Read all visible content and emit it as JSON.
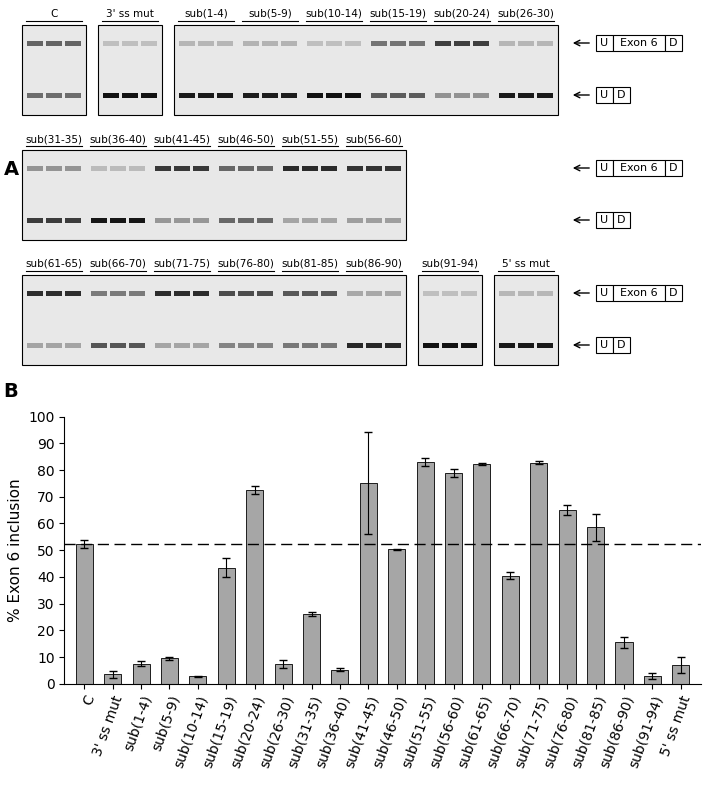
{
  "gel_panel": {
    "label": "A",
    "rows": [
      [
        [
          "C"
        ],
        [
          "3' ss mut"
        ],
        [
          "sub(1-4)",
          "sub(5-9)",
          "sub(10-14)",
          "sub(15-19)",
          "sub(20-24)",
          "sub(26-30)"
        ]
      ],
      [
        [
          "sub(31-35)",
          "sub(36-40)",
          "sub(41-45)",
          "sub(46-50)",
          "sub(51-55)",
          "sub(56-60)"
        ]
      ],
      [
        [
          "sub(61-65)",
          "sub(66-70)",
          "sub(71-75)",
          "sub(76-80)",
          "sub(81-85)",
          "sub(86-90)"
        ],
        [
          "sub(91-94)"
        ],
        [
          "5' ss mut"
        ]
      ]
    ],
    "band_labels": [
      [
        "U",
        "Exon 6",
        "D"
      ],
      [
        "U",
        "D"
      ]
    ]
  },
  "chart_data": {
    "type": "bar",
    "panel_label": "B",
    "ylabel": "% Exon 6 inclusion",
    "categories": [
      "C",
      "3' ss mut",
      "sub(1-4)",
      "sub(5-9)",
      "sub(10-14)",
      "sub(15-19)",
      "sub(20-24)",
      "sub(26-30)",
      "sub(31-35)",
      "sub(36-40)",
      "sub(41-45)",
      "sub(46-50)",
      "sub(51-55)",
      "sub(56-60)",
      "sub(61-65)",
      "sub(66-70)",
      "sub(71-75)",
      "sub(76-80)",
      "sub(81-85)",
      "sub(86-90)",
      "sub(91-94)",
      "5' ss mut"
    ],
    "values": [
      52.5,
      3.5,
      7.5,
      9.5,
      2.8,
      43.5,
      72.5,
      7.5,
      26.2,
      5.3,
      75.2,
      50.3,
      83,
      78.8,
      82.3,
      40.5,
      82.8,
      65,
      58.5,
      15.5,
      3,
      7
    ],
    "errors": [
      1.5,
      1.2,
      1,
      0.5,
      0.3,
      3.5,
      1.5,
      1.5,
      0.8,
      0.5,
      19,
      0.3,
      1.5,
      1.5,
      0.5,
      1.3,
      0.5,
      2,
      5,
      2,
      1.2,
      3
    ],
    "reference_line": 52.5,
    "color": "#a6a6a6",
    "ylim": [
      0,
      100
    ],
    "yticks": [
      0,
      10,
      20,
      30,
      40,
      50,
      60,
      70,
      80,
      90,
      100
    ],
    "grid": false
  }
}
